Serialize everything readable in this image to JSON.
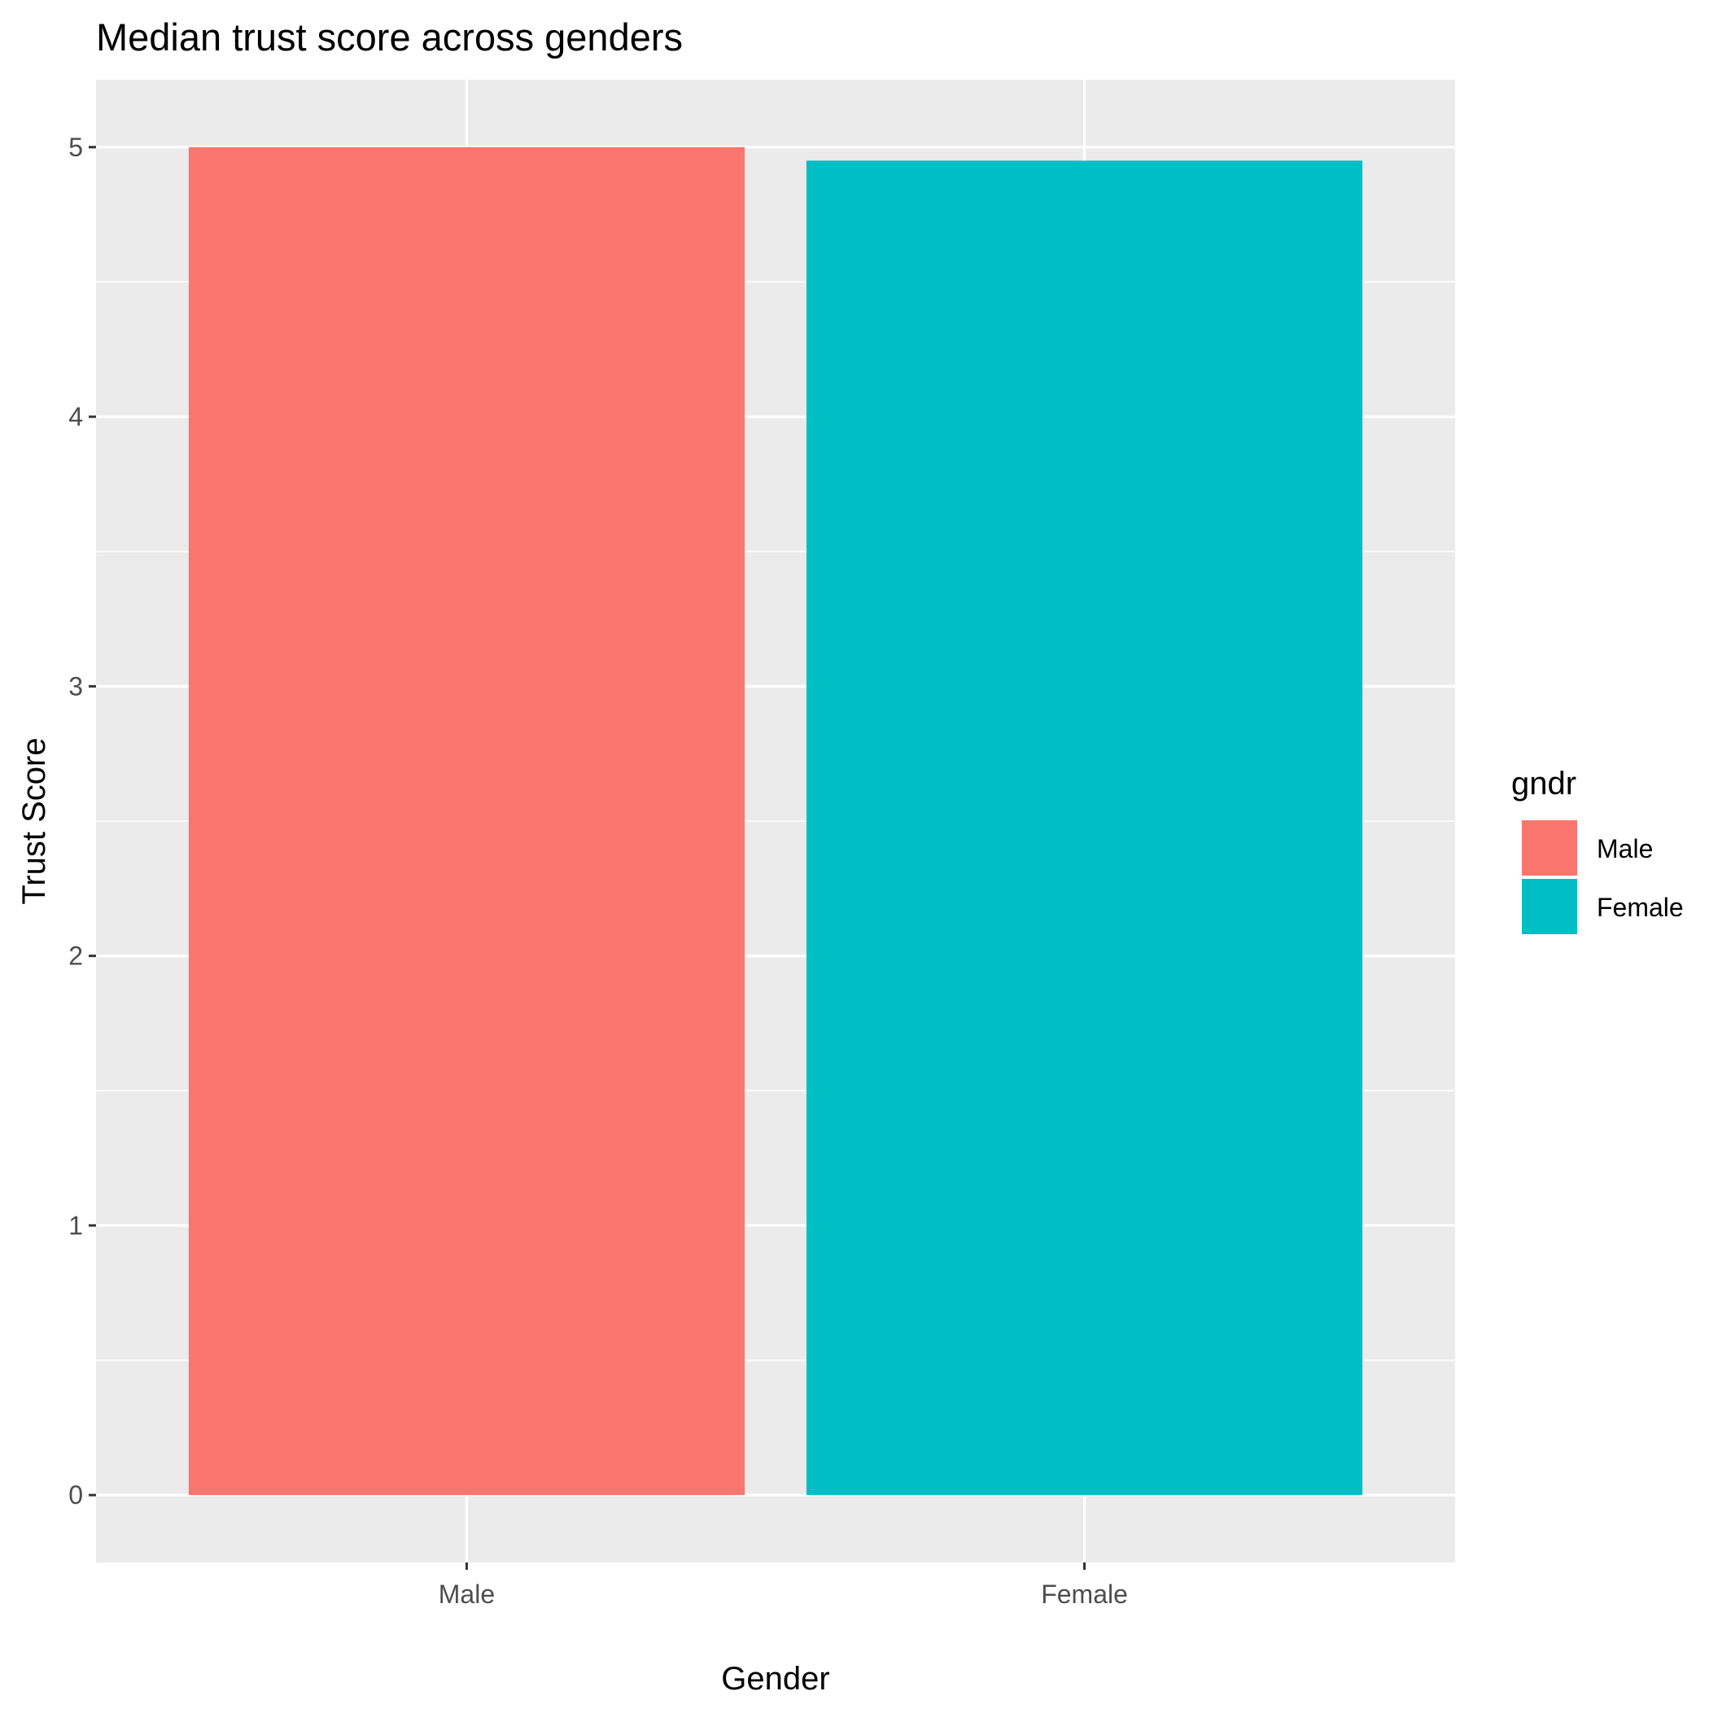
{
  "chart_data": {
    "type": "bar",
    "title": "Median trust score across genders",
    "xlabel": "Gender",
    "ylabel": "Trust Score",
    "categories": [
      "Male",
      "Female"
    ],
    "values": [
      5.0,
      4.95
    ],
    "colors": [
      "#F8766D",
      "#00BFC4"
    ],
    "ylim": [
      -0.25,
      5.25
    ],
    "yticks": [
      0,
      1,
      2,
      3,
      4,
      5
    ],
    "grid": true,
    "legend": {
      "title": "gndr",
      "position": "right",
      "entries": [
        {
          "label": "Male",
          "color": "#F8766D"
        },
        {
          "label": "Female",
          "color": "#00BFC4"
        }
      ]
    }
  },
  "theme": {
    "panel_background": "#EBEBEB",
    "grid_color": "#FFFFFF",
    "tick_color": "#333333",
    "tick_label_color": "#4D4D4D"
  }
}
